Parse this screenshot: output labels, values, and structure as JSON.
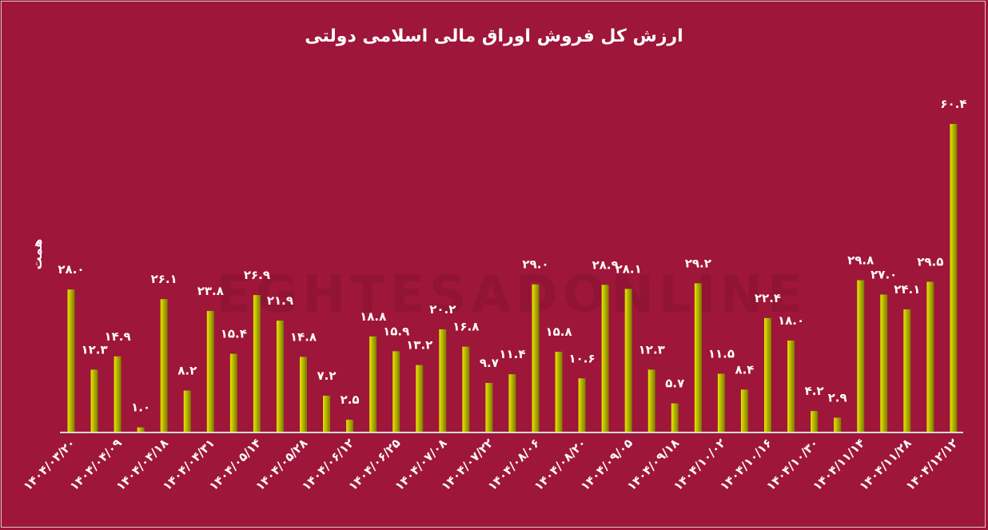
{
  "chart_data": {
    "type": "bar",
    "title": "ارزش کل فروش اوراق مالی اسلامی دولتی",
    "ylabel": "همت",
    "xlabel": "",
    "ylim": [
      0,
      62
    ],
    "grid": false,
    "values": [
      28.0,
      12.3,
      14.9,
      1.0,
      26.1,
      8.2,
      23.8,
      15.4,
      26.9,
      21.9,
      14.8,
      7.2,
      2.5,
      18.8,
      15.9,
      13.2,
      20.2,
      16.8,
      9.7,
      11.4,
      29.0,
      15.8,
      10.6,
      28.9,
      28.1,
      12.3,
      5.7,
      29.2,
      11.5,
      8.4,
      22.4,
      18.0,
      4.2,
      2.9,
      29.8,
      27.0,
      24.1,
      29.5,
      60.4
    ],
    "data_labels": [
      "۲۸.۰",
      "۱۲.۳",
      "۱۴.۹",
      "۱.۰",
      "۲۶.۱",
      "۸.۲",
      "۲۳.۸",
      "۱۵.۴",
      "۲۶.۹",
      "۲۱.۹",
      "۱۴.۸",
      "۷.۲",
      "۲.۵",
      "۱۸.۸",
      "۱۵.۹",
      "۱۳.۲",
      "۲۰.۲",
      "۱۶.۸",
      "۹.۷",
      "۱۱.۴",
      "۲۹.۰",
      "۱۵.۸",
      "۱۰.۶",
      "۲۸.۹",
      "۲۸.۱",
      "۱۲.۳",
      "۵.۷",
      "۲۹.۲",
      "۱۱.۵",
      "۸.۴",
      "۲۲.۴",
      "۱۸.۰",
      "۴.۲",
      "۲.۹",
      "۲۹.۸",
      "۲۷.۰",
      "۲۴.۱",
      "۲۹.۵",
      "۶۰.۴"
    ],
    "x_tick_labels": [
      "۱۴۰۴/۰۳/۲۰",
      "۱۴۰۴/۰۴/۰۹",
      "۱۴۰۴/۰۴/۱۸",
      "۱۴۰۴/۰۴/۳۱",
      "۱۴۰۴/۰۵/۱۴",
      "۱۴۰۴/۰۵/۲۸",
      "۱۴۰۴/۰۶/۱۲",
      "۱۴۰۴/۰۶/۲۵",
      "۱۴۰۴/۰۷/۰۸",
      "۱۴۰۴/۰۷/۲۲",
      "۱۴۰۴/۰۸/۰۶",
      "۱۴۰۴/۰۸/۲۰",
      "۱۴۰۴/۰۹/۰۵",
      "۱۴۰۴/۰۹/۱۸",
      "۱۴۰۴/۱۰/۰۲",
      "۱۴۰۴/۱۰/۱۶",
      "۱۴۰۴/۱۰/۳۰",
      "۱۴۰۴/۱۱/۱۴",
      "۱۴۰۴/۱۱/۲۸",
      "۱۴۰۴/۱۲/۱۲"
    ],
    "tick_label_every": 2,
    "colors": {
      "background": "#9e1639",
      "bar_light": "#e6e600",
      "bar_dark": "#7a7a00",
      "text": "#ffffff",
      "axis": "#d9d9d9"
    }
  },
  "watermark": "EGHTESADONLINE"
}
